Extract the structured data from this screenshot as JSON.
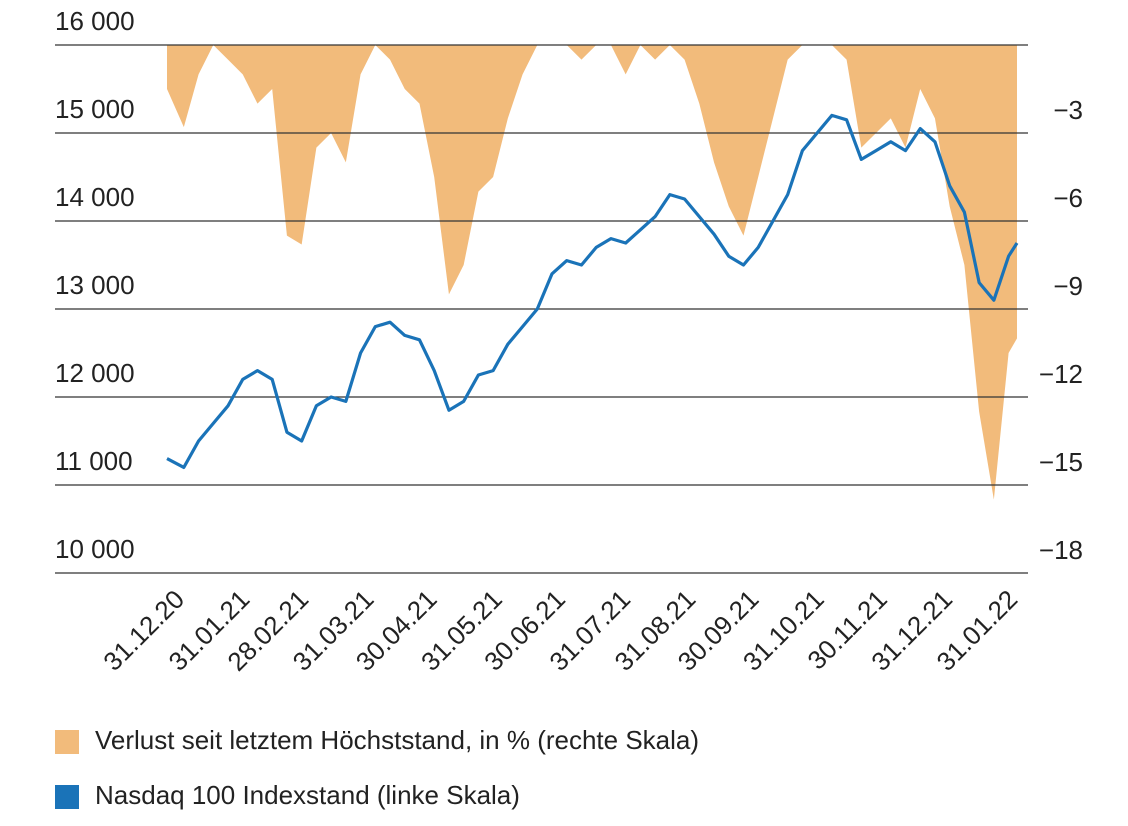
{
  "chart_data": {
    "type": "line",
    "x": [
      "31.12.20",
      "08.01.21",
      "15.01.21",
      "22.01.21",
      "29.01.21",
      "05.02.21",
      "12.02.21",
      "19.02.21",
      "26.02.21",
      "05.03.21",
      "12.03.21",
      "19.03.21",
      "26.03.21",
      "02.04.21",
      "09.04.21",
      "16.04.21",
      "23.04.21",
      "30.04.21",
      "07.05.21",
      "14.05.21",
      "21.05.21",
      "28.05.21",
      "04.06.21",
      "11.06.21",
      "18.06.21",
      "25.06.21",
      "02.07.21",
      "09.07.21",
      "16.07.21",
      "23.07.21",
      "30.07.21",
      "06.08.21",
      "13.08.21",
      "20.08.21",
      "27.08.21",
      "03.09.21",
      "10.09.21",
      "17.09.21",
      "24.09.21",
      "01.10.21",
      "08.10.21",
      "15.10.21",
      "22.10.21",
      "29.10.21",
      "05.11.21",
      "12.11.21",
      "19.11.21",
      "26.11.21",
      "03.12.21",
      "10.12.21",
      "17.12.21",
      "24.12.21",
      "31.12.21",
      "07.01.22",
      "14.01.22",
      "21.01.22",
      "28.01.22",
      "04.02.22",
      "08.02.22"
    ],
    "series": [
      {
        "name": "Verlust seit letztem Höchststand, in % (rechte Skala)",
        "type": "area",
        "axis": "y2",
        "color": "#f2bb7b",
        "values": [
          -1.5,
          -2.8,
          -1,
          0,
          -0.5,
          -1,
          -2,
          -1.5,
          -6.5,
          -6.8,
          -3.5,
          -3,
          -4,
          -1,
          0,
          -0.5,
          -1.5,
          -2,
          -4.5,
          -8.5,
          -7.5,
          -5,
          -4.5,
          -2.5,
          -1,
          0,
          0,
          0,
          -0.5,
          0,
          0,
          -1,
          0,
          -0.5,
          0,
          -0.5,
          -2,
          -4,
          -5.5,
          -6.5,
          -4.5,
          -2.5,
          -0.5,
          0,
          0,
          0,
          -0.5,
          -3.5,
          -3,
          -2.5,
          -3.5,
          -1.5,
          -2.5,
          -5.5,
          -7.5,
          -12.5,
          -15.5,
          -10.5,
          -10
        ]
      },
      {
        "name": "Nasdaq 100 Indexstand (linke Skala)",
        "type": "line",
        "color": "#1a73b8",
        "values": [
          11300,
          11200,
          11500,
          11700,
          11900,
          12200,
          12300,
          12200,
          11600,
          11500,
          11900,
          12000,
          11950,
          12500,
          12800,
          12850,
          12700,
          12650,
          12300,
          11850,
          11950,
          12250,
          12300,
          12600,
          12800,
          13000,
          13400,
          13550,
          13500,
          13700,
          13800,
          13750,
          13900,
          14050,
          14300,
          14250,
          14050,
          13850,
          13600,
          13500,
          13700,
          14000,
          14300,
          14800,
          15000,
          15200,
          15150,
          14700,
          14800,
          14900,
          14800,
          15050,
          14900,
          14400,
          14100,
          13300,
          13100,
          13600,
          13750
        ]
      }
    ],
    "xticks": [
      "31.12.20",
      "31.01.21",
      "28.02.21",
      "31.03.21",
      "30.04.21",
      "31.05.21",
      "30.06.21",
      "31.07.21",
      "31.08.21",
      "30.09.21",
      "31.10.21",
      "30.11.21",
      "31.12.21",
      "31.01.22"
    ],
    "ylim": [
      10000,
      16000
    ],
    "yticks": [
      {
        "value": 16000,
        "label": "16 000"
      },
      {
        "value": 15000,
        "label": "15 000"
      },
      {
        "value": 14000,
        "label": "14 000"
      },
      {
        "value": 13000,
        "label": "13 000"
      },
      {
        "value": 12000,
        "label": "12 000"
      },
      {
        "value": 11000,
        "label": "11 000"
      },
      {
        "value": 10000,
        "label": "10 000"
      }
    ],
    "y2lim": [
      -18,
      0
    ],
    "y2ticks": [
      {
        "value": -3,
        "label": "−3"
      },
      {
        "value": -6,
        "label": "−6"
      },
      {
        "value": -9,
        "label": "−9"
      },
      {
        "value": -12,
        "label": "−12"
      },
      {
        "value": -15,
        "label": "−15"
      },
      {
        "value": -18,
        "label": "−18"
      }
    ],
    "grid": true
  }
}
